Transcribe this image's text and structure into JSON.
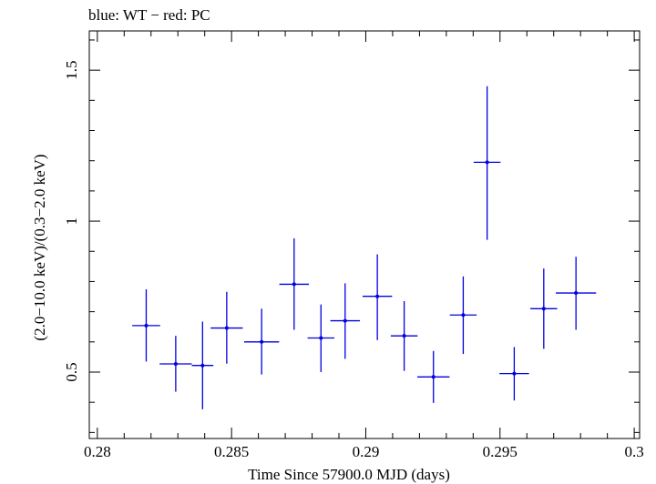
{
  "chart_data": {
    "type": "scatter",
    "title": "blue: WT − red: PC",
    "xlabel": "Time Since 57900.0 MJD (days)",
    "ylabel": "(2.0−10.0 keV)/(0.3−2.0 keV)",
    "xlim": [
      0.2797,
      0.3002
    ],
    "ylim": [
      0.28,
      1.63
    ],
    "x_ticks": [
      {
        "value": 0.28,
        "label": "0.28"
      },
      {
        "value": 0.285,
        "label": "0.285"
      },
      {
        "value": 0.29,
        "label": "0.29"
      },
      {
        "value": 0.295,
        "label": "0.295"
      },
      {
        "value": 0.3,
        "label": "0.3"
      }
    ],
    "y_ticks": [
      {
        "value": 0.5,
        "label": "0.5"
      },
      {
        "value": 1.0,
        "label": "1"
      },
      {
        "value": 1.5,
        "label": "1.5"
      }
    ],
    "grid": false,
    "series": [
      {
        "name": "WT",
        "color": "#0000e0",
        "points": [
          {
            "x": 0.28182,
            "y": 0.654,
            "xerr": 0.00052,
            "ylo": 0.535,
            "yhi": 0.774
          },
          {
            "x": 0.28292,
            "y": 0.527,
            "xerr": 0.0006,
            "ylo": 0.435,
            "yhi": 0.62
          },
          {
            "x": 0.28392,
            "y": 0.522,
            "xerr": 0.0004,
            "ylo": 0.377,
            "yhi": 0.667
          },
          {
            "x": 0.28482,
            "y": 0.646,
            "xerr": 0.0006,
            "ylo": 0.528,
            "yhi": 0.766
          },
          {
            "x": 0.28612,
            "y": 0.6,
            "xerr": 0.00065,
            "ylo": 0.492,
            "yhi": 0.71
          },
          {
            "x": 0.28733,
            "y": 0.791,
            "xerr": 0.00055,
            "ylo": 0.64,
            "yhi": 0.943
          },
          {
            "x": 0.28833,
            "y": 0.613,
            "xerr": 0.0005,
            "ylo": 0.5,
            "yhi": 0.724
          },
          {
            "x": 0.28923,
            "y": 0.67,
            "xerr": 0.00055,
            "ylo": 0.544,
            "yhi": 0.794
          },
          {
            "x": 0.29043,
            "y": 0.751,
            "xerr": 0.00055,
            "ylo": 0.606,
            "yhi": 0.89
          },
          {
            "x": 0.29143,
            "y": 0.62,
            "xerr": 0.0005,
            "ylo": 0.504,
            "yhi": 0.735
          },
          {
            "x": 0.29252,
            "y": 0.484,
            "xerr": 0.0006,
            "ylo": 0.398,
            "yhi": 0.57
          },
          {
            "x": 0.29363,
            "y": 0.689,
            "xerr": 0.0005,
            "ylo": 0.56,
            "yhi": 0.817
          },
          {
            "x": 0.29452,
            "y": 1.195,
            "xerr": 0.0005,
            "ylo": 0.938,
            "yhi": 1.447
          },
          {
            "x": 0.29553,
            "y": 0.495,
            "xerr": 0.00055,
            "ylo": 0.406,
            "yhi": 0.583
          },
          {
            "x": 0.29663,
            "y": 0.71,
            "xerr": 0.0005,
            "ylo": 0.577,
            "yhi": 0.843
          },
          {
            "x": 0.29783,
            "y": 0.762,
            "xerr": 0.00075,
            "ylo": 0.64,
            "yhi": 0.882
          }
        ]
      }
    ]
  }
}
